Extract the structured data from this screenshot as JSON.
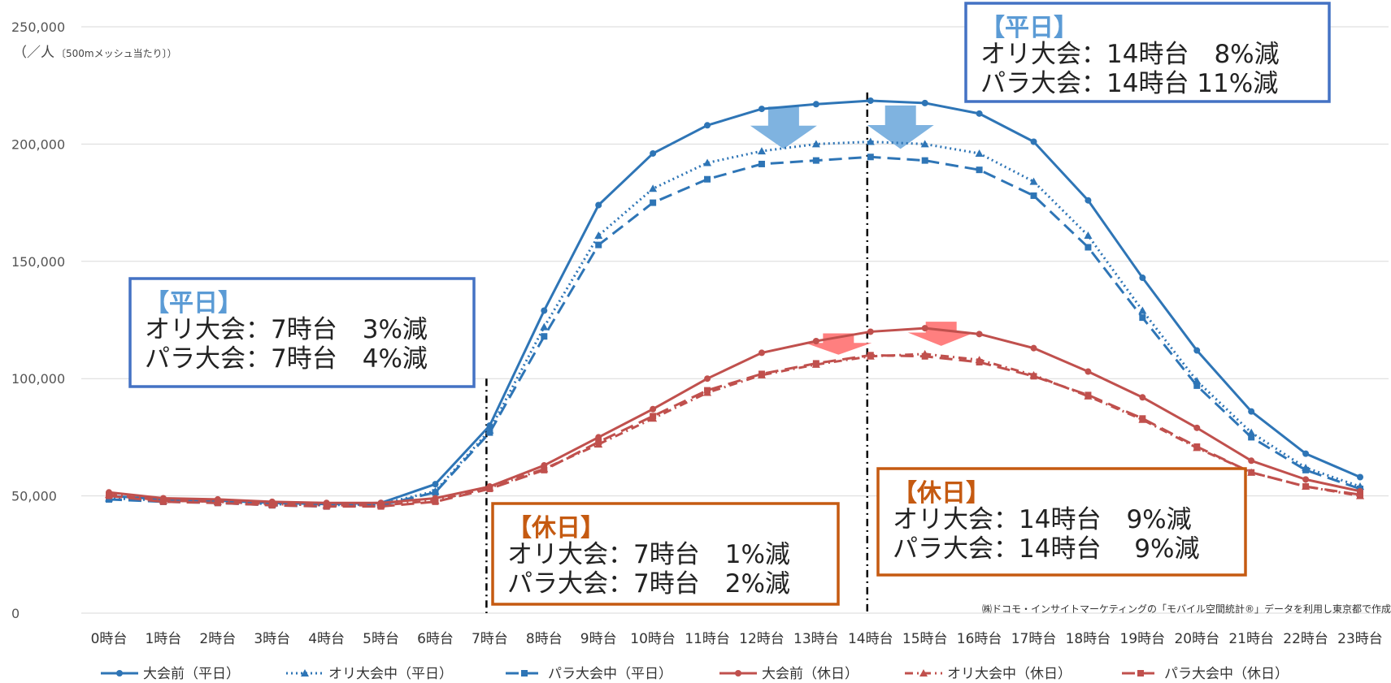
{
  "chart_data": {
    "type": "line",
    "y_unit": "（／人",
    "y_unit_small": "〔500mメッシュ当たり〕）",
    "ylim": [
      0,
      250000
    ],
    "y_ticks": [
      0,
      50000,
      100000,
      150000,
      200000,
      250000
    ],
    "y_tick_labels": [
      "0",
      "50,000",
      "100,000",
      "150,000",
      "200,000",
      "250,000"
    ],
    "categories": [
      "0時台",
      "1時台",
      "2時台",
      "3時台",
      "4時台",
      "5時台",
      "6時台",
      "7時台",
      "8時台",
      "9時台",
      "10時台",
      "11時台",
      "12時台",
      "13時台",
      "14時台",
      "15時台",
      "16時台",
      "17時台",
      "18時台",
      "19時台",
      "20時台",
      "21時台",
      "22時台",
      "23時台"
    ],
    "grid": true,
    "legend_position": "bottom",
    "series": [
      {
        "name": "大会前（平日）",
        "color": "#2e75b6",
        "dash": "solid",
        "marker": "circle",
        "values": [
          50000,
          48500,
          48000,
          47000,
          46500,
          47000,
          55000,
          80000,
          129000,
          174000,
          196000,
          208000,
          215000,
          217000,
          218500,
          217500,
          213000,
          201000,
          176000,
          143000,
          112000,
          86000,
          68000,
          58000
        ]
      },
      {
        "name": "オリ大会中（平日）",
        "color": "#2e75b6",
        "dash": "dotted",
        "marker": "triangle",
        "values": [
          49000,
          48000,
          47500,
          46500,
          46000,
          46500,
          52000,
          78000,
          122000,
          161000,
          181000,
          192000,
          197000,
          200000,
          201000,
          200000,
          196000,
          184000,
          161000,
          129000,
          99000,
          77000,
          62000,
          54000
        ]
      },
      {
        "name": "パラ大会中（平日）",
        "color": "#2e75b6",
        "dash": "dashed",
        "marker": "square",
        "values": [
          48500,
          47500,
          47000,
          46000,
          45500,
          46000,
          51500,
          77000,
          118000,
          157000,
          175000,
          185000,
          191500,
          193000,
          194500,
          193000,
          189000,
          178000,
          156000,
          126000,
          97000,
          75000,
          61000,
          53000
        ]
      },
      {
        "name": "大会前（休日）",
        "color": "#c0504d",
        "dash": "solid",
        "marker": "circle",
        "values": [
          51500,
          49000,
          48500,
          47500,
          47000,
          47000,
          49000,
          54000,
          63000,
          75000,
          87000,
          100000,
          111000,
          116000,
          120000,
          121500,
          119000,
          113000,
          103000,
          92000,
          79000,
          65000,
          57000,
          52000
        ]
      },
      {
        "name": "オリ大会中（休日）",
        "color": "#c0504d",
        "dash": "dashdot",
        "marker": "triangle",
        "values": [
          50500,
          48000,
          47500,
          46500,
          46000,
          46000,
          48000,
          53500,
          61500,
          72000,
          83000,
          94000,
          101500,
          106000,
          109500,
          110500,
          108000,
          101500,
          92500,
          82500,
          70500,
          60000,
          54000,
          50000
        ]
      },
      {
        "name": "パラ大会中（休日）",
        "color": "#c0504d",
        "dash": "dashed",
        "marker": "square",
        "values": [
          50000,
          47500,
          47000,
          46000,
          45500,
          45500,
          47500,
          53000,
          61000,
          73000,
          84000,
          95000,
          102000,
          106500,
          110000,
          109500,
          107000,
          101000,
          93000,
          83000,
          71000,
          60000,
          54000,
          50500
        ]
      }
    ],
    "annotations": [
      {
        "title": "【平日】",
        "lines": [
          "オリ大会：7時台　3%減",
          "パラ大会：7時台　4%減"
        ],
        "category": "7時台",
        "color": "#4472c4"
      },
      {
        "title": "【平日】",
        "lines": [
          "オリ大会：14時台　8%減",
          "パラ大会：14時台  11%減"
        ],
        "category": "14時台",
        "color": "#4472c4"
      },
      {
        "title": "【休日】",
        "lines": [
          "オリ大会：7時台　1%減",
          "パラ大会：7時台　2%減"
        ],
        "category": "7時台",
        "color": "#c55a11"
      },
      {
        "title": "【休日】",
        "lines": [
          "オリ大会：14時台　9%減",
          "パラ大会：14時台　 9%減"
        ],
        "category": "14時台",
        "color": "#c55a11"
      }
    ],
    "credit": "㈱ドコモ・インサイトマーケティングの「モバイル空間統計®」データを利用し東京都で作成"
  }
}
